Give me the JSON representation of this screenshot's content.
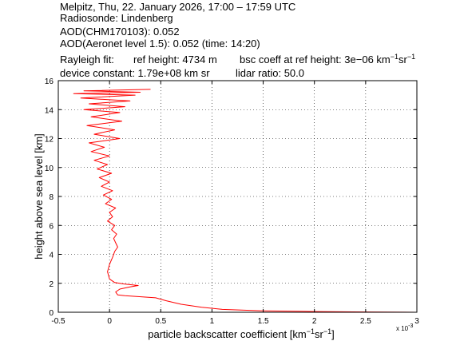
{
  "header": {
    "line1": "Melpitz, Thu, 22. January 2026, 17:00 – 17:59 UTC",
    "line2": "Radiosonde: Lindenberg",
    "line3": "AOD(CHM170103): 0.052",
    "line4": "AOD(Aeronet level 1.5): 0.052   (time: 14:20)",
    "rayleigh_label": "Rayleigh fit:",
    "ref_height": "ref height: 4734 m",
    "bsc_coeff_prefix": "bsc coeff at ref height: 3e−06 km",
    "bsc_sup1": "−1",
    "bsc_mid": "sr",
    "bsc_sup2": "−1",
    "device_constant": "device constant: 1.79e+08 km sr",
    "lidar_ratio": "lidar ratio: 50.0"
  },
  "chart_data": {
    "type": "line",
    "xlabel_prefix": "particle backscatter coefficient [km",
    "xlabel_sup1": "−1",
    "xlabel_mid": "sr",
    "xlabel_sup2": "−1",
    "xlabel_suffix": "]",
    "ylabel": "height above sea level [km]",
    "x_multiplier": "x 10",
    "x_multiplier_exp": "-3",
    "xlim": [
      -0.5,
      3
    ],
    "ylim": [
      0,
      16
    ],
    "xticks": [
      "-0.5",
      "0",
      "0.5",
      "1",
      "1.5",
      "2",
      "2.5",
      "3"
    ],
    "yticks": [
      "0",
      "2",
      "4",
      "6",
      "8",
      "10",
      "12",
      "14",
      "16"
    ],
    "grid": true,
    "series_color": "#ff0000",
    "series": [
      {
        "x": [
          3.0,
          2.5,
          2.0,
          1.5,
          1.1,
          0.9,
          0.7,
          0.55,
          0.45,
          0.35,
          0.25,
          0.15,
          0.08,
          0.06,
          0.1,
          0.2,
          0.28,
          0.15,
          0.05,
          0.0,
          -0.02,
          0.0,
          0.03,
          0.05,
          0.08,
          0.06,
          0.04,
          0.07,
          0.02,
          0.05,
          -0.02,
          0.03,
          0.0,
          0.06,
          -0.04,
          0.02,
          -0.06,
          0.03,
          -0.08,
          0.0,
          -0.1,
          0.02,
          -0.12,
          -0.02,
          -0.15,
          0.0,
          -0.18,
          -0.05,
          -0.2,
          0.1,
          -0.15,
          0.05,
          -0.22,
          0.12,
          -0.18,
          0.1,
          -0.25,
          0.15,
          -0.2,
          0.2,
          -0.28,
          0.25,
          -0.35,
          0.3,
          -0.25,
          0.4
        ],
        "y": [
          0.0,
          0.02,
          0.05,
          0.1,
          0.2,
          0.35,
          0.55,
          0.8,
          1.0,
          1.05,
          1.1,
          1.15,
          1.2,
          1.4,
          1.6,
          1.75,
          1.85,
          1.95,
          2.05,
          2.3,
          2.8,
          3.3,
          3.8,
          4.2,
          4.5,
          4.8,
          5.1,
          5.4,
          5.7,
          6.0,
          6.3,
          6.6,
          6.9,
          7.2,
          7.5,
          7.8,
          8.1,
          8.4,
          8.7,
          9.0,
          9.3,
          9.6,
          9.9,
          10.2,
          10.5,
          10.8,
          11.1,
          11.4,
          11.7,
          12.0,
          12.3,
          12.6,
          12.9,
          13.2,
          13.5,
          13.8,
          14.0,
          14.2,
          14.4,
          14.6,
          14.8,
          15.0,
          15.1,
          15.2,
          15.3,
          15.4
        ]
      }
    ]
  }
}
